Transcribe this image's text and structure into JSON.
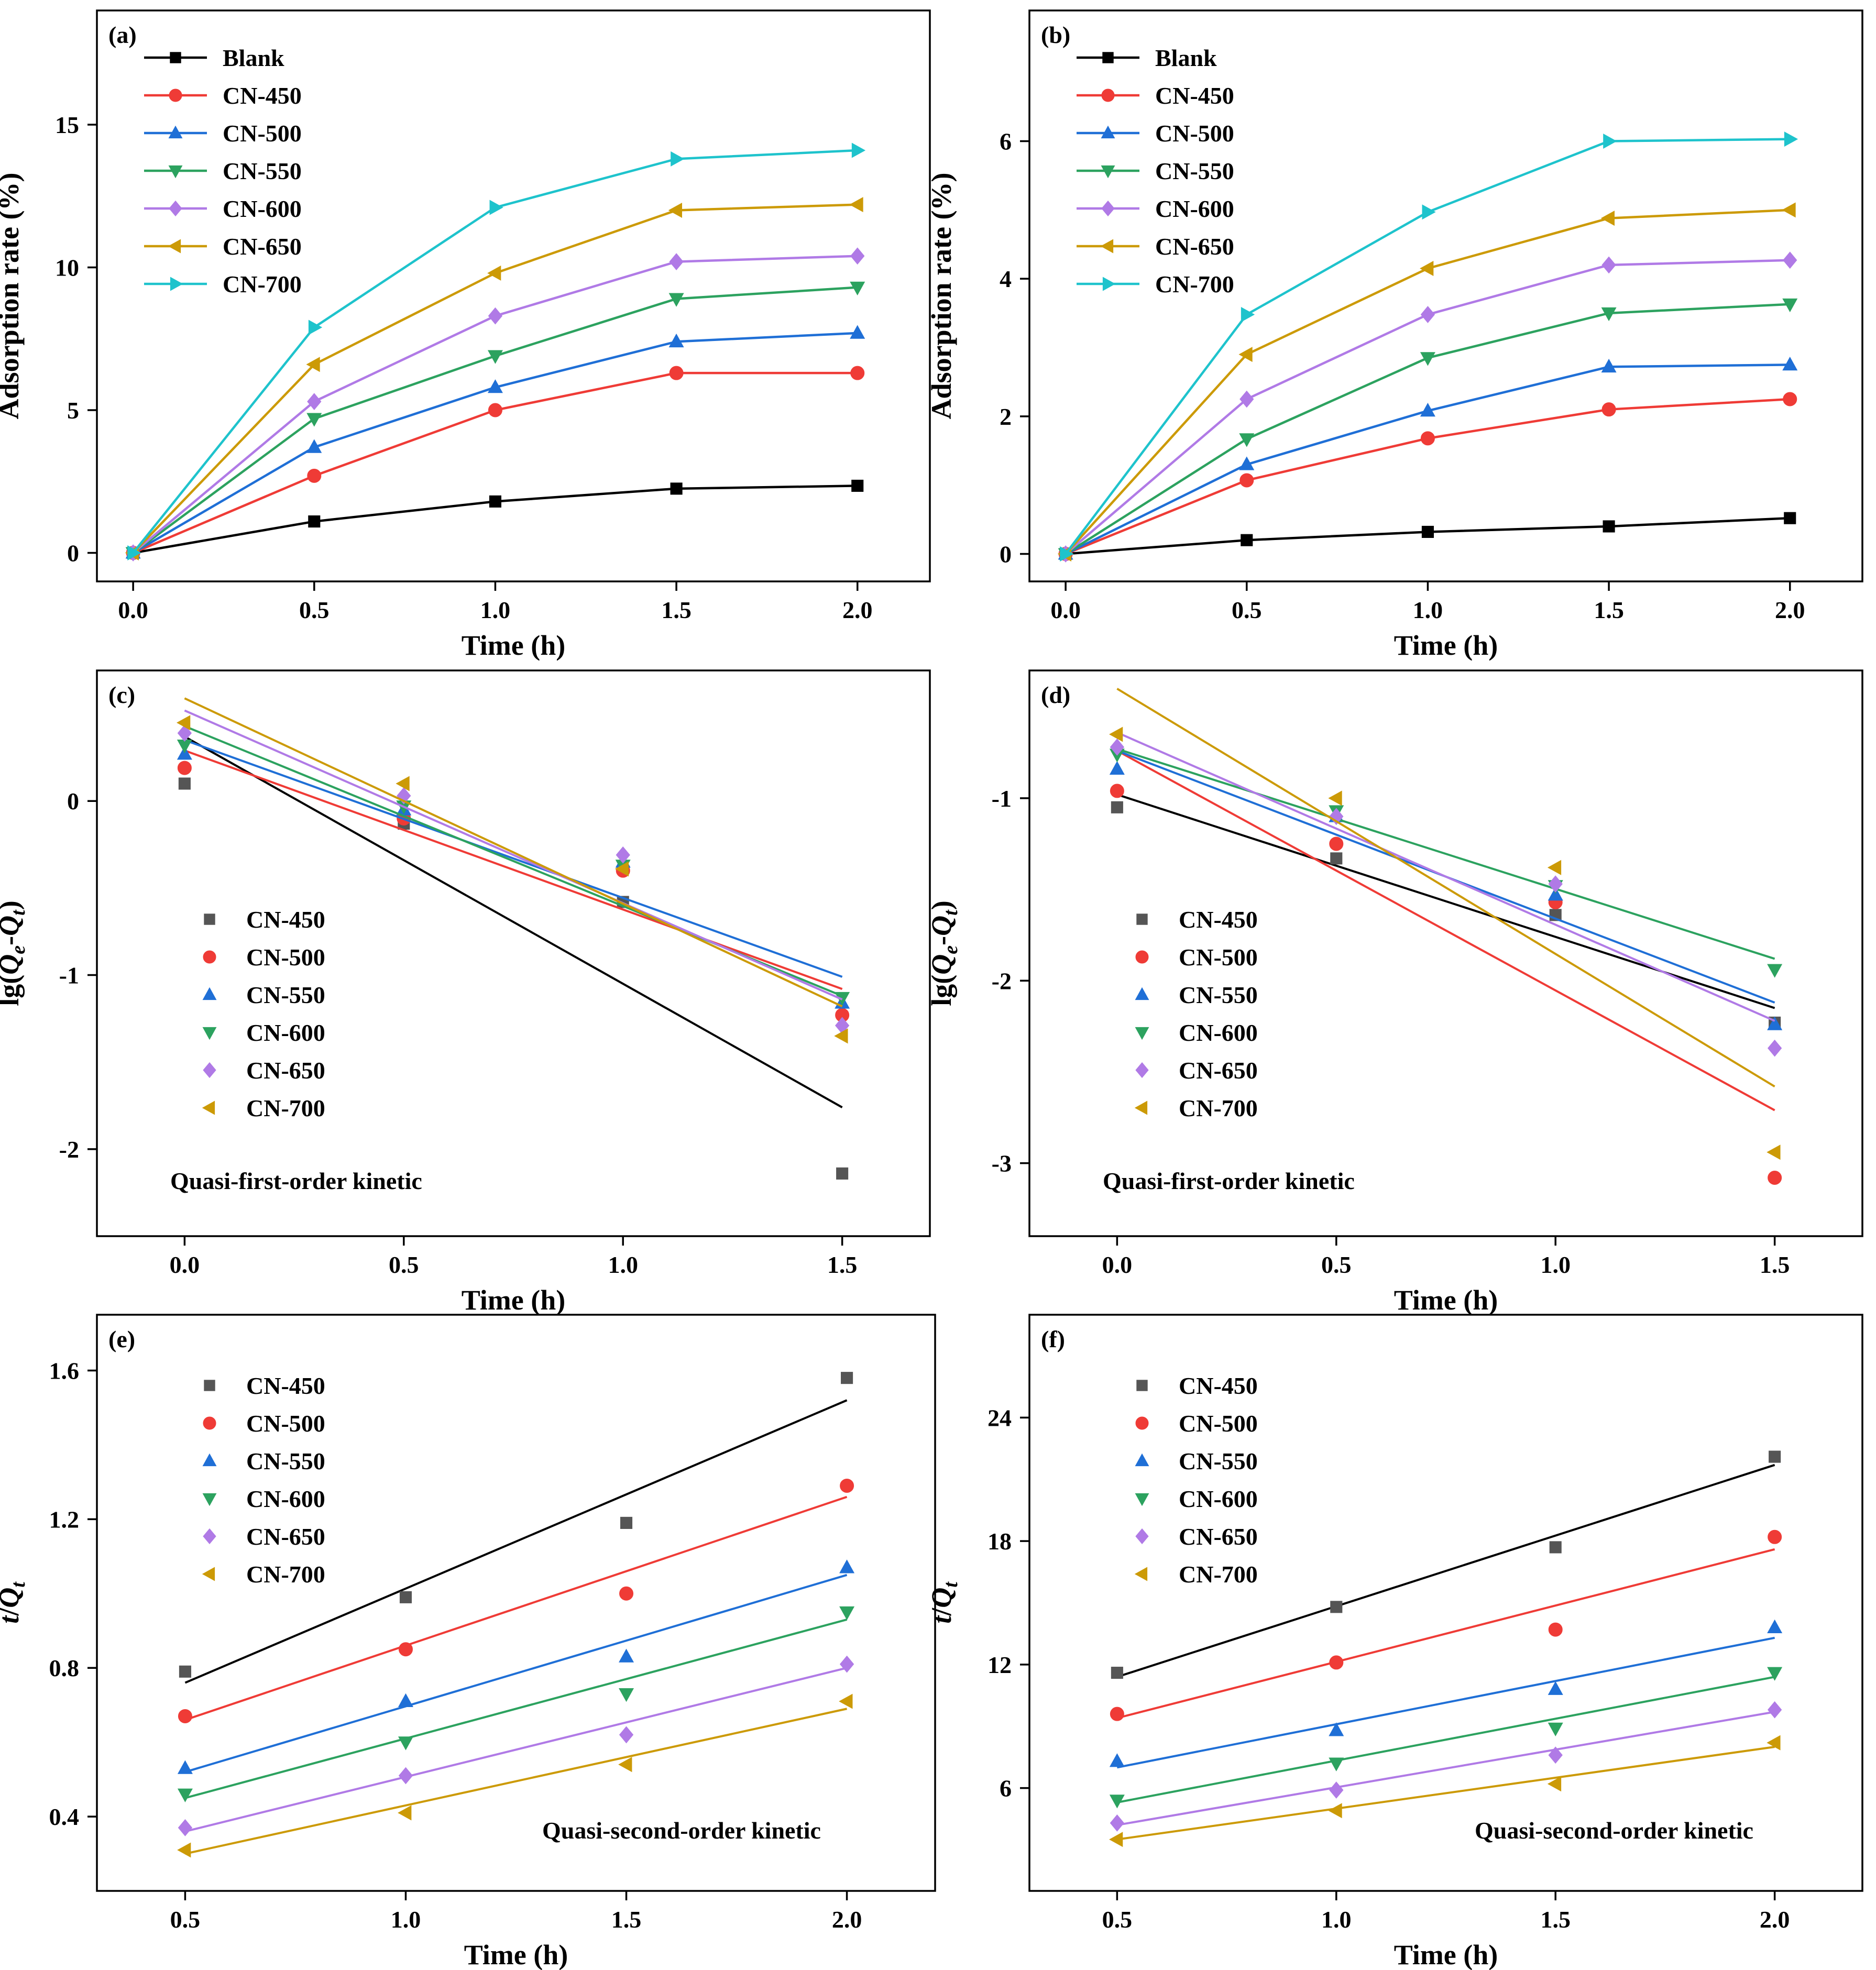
{
  "figure": {
    "background": "#ffffff",
    "series_colors": {
      "Blank": "#000000",
      "CN-450": "#ef3b36",
      "CN-500": "#1f6fd6",
      "CN-550": "#2ca25f",
      "CN-600": "#b07ae6",
      "CN-650": "#cc9a06",
      "CN-700": "#1ec3cc"
    },
    "fit_colors": [
      "#000000",
      "#ef3b36",
      "#1f6fd6",
      "#2ca25f",
      "#b07ae6",
      "#cc9a06"
    ],
    "scatter_colors": [
      "#555555",
      "#ef3b36",
      "#1f6fd6",
      "#2ca25f",
      "#b07ae6",
      "#cc9a06"
    ],
    "marker_shapes": [
      "square",
      "circle",
      "triangle-up",
      "triangle-down",
      "diamond",
      "triangle-left",
      "triangle-right"
    ]
  },
  "chart_data": [
    {
      "panel": "(a)",
      "type": "line",
      "xlabel": "Time (h)",
      "ylabel": "Adsorption rate (%)",
      "xlim": [
        -0.1,
        2.2
      ],
      "ylim": [
        -1,
        19
      ],
      "xticks": [
        0.0,
        0.5,
        1.0,
        1.5,
        2.0
      ],
      "xtick_labels": [
        "0.0",
        "0.5",
        "1.0",
        "1.5",
        "2.0"
      ],
      "yticks": [
        0,
        5,
        10,
        15
      ],
      "ytick_labels": [
        "0",
        "5",
        "10",
        "15"
      ],
      "legend_position": "top-left",
      "x": [
        0,
        0.5,
        1.0,
        1.5,
        2.0
      ],
      "series": [
        {
          "name": "Blank",
          "marker": "square",
          "values": [
            0,
            1.1,
            1.8,
            2.25,
            2.35
          ]
        },
        {
          "name": "CN-450",
          "marker": "circle",
          "values": [
            0,
            2.7,
            5.0,
            6.3,
            6.3
          ]
        },
        {
          "name": "CN-500",
          "marker": "triangle-up",
          "values": [
            0,
            3.7,
            5.8,
            7.4,
            7.7
          ]
        },
        {
          "name": "CN-550",
          "marker": "triangle-down",
          "values": [
            0,
            4.7,
            6.9,
            8.9,
            9.3
          ]
        },
        {
          "name": "CN-600",
          "marker": "diamond",
          "values": [
            0,
            5.3,
            8.3,
            10.2,
            10.4
          ]
        },
        {
          "name": "CN-650",
          "marker": "triangle-left",
          "values": [
            0,
            6.6,
            9.8,
            12.0,
            12.2
          ]
        },
        {
          "name": "CN-700",
          "marker": "triangle-right",
          "values": [
            0,
            7.9,
            12.1,
            13.8,
            14.1
          ]
        }
      ]
    },
    {
      "panel": "(b)",
      "type": "line",
      "xlabel": "Time (h)",
      "ylabel": "Adsorption rate (%)",
      "xlim": [
        -0.1,
        2.2
      ],
      "ylim": [
        -0.4,
        7.9
      ],
      "xticks": [
        0.0,
        0.5,
        1.0,
        1.5,
        2.0
      ],
      "xtick_labels": [
        "0.0",
        "0.5",
        "1.0",
        "1.5",
        "2.0"
      ],
      "yticks": [
        0,
        2,
        4,
        6
      ],
      "ytick_labels": [
        "0",
        "2",
        "4",
        "6"
      ],
      "legend_position": "top-left",
      "x": [
        0,
        0.5,
        1.0,
        1.5,
        2.0
      ],
      "series": [
        {
          "name": "Blank",
          "marker": "square",
          "values": [
            0,
            0.2,
            0.32,
            0.4,
            0.52
          ]
        },
        {
          "name": "CN-450",
          "marker": "circle",
          "values": [
            0,
            1.07,
            1.68,
            2.1,
            2.25
          ]
        },
        {
          "name": "CN-500",
          "marker": "triangle-up",
          "values": [
            0,
            1.3,
            2.08,
            2.72,
            2.75
          ]
        },
        {
          "name": "CN-550",
          "marker": "triangle-down",
          "values": [
            0,
            1.67,
            2.85,
            3.5,
            3.63
          ]
        },
        {
          "name": "CN-600",
          "marker": "diamond",
          "values": [
            0,
            2.25,
            3.48,
            4.2,
            4.27
          ]
        },
        {
          "name": "CN-650",
          "marker": "triangle-left",
          "values": [
            0,
            2.9,
            4.15,
            4.88,
            5.0
          ]
        },
        {
          "name": "CN-700",
          "marker": "triangle-right",
          "values": [
            0,
            3.48,
            4.97,
            6.0,
            6.03
          ]
        }
      ]
    },
    {
      "panel": "(c)",
      "type": "scatter",
      "xlabel": "Time (h)",
      "ylabel": "lg(Qe-Qt)",
      "xlim": [
        -0.2,
        1.7
      ],
      "ylim": [
        -2.5,
        0.75
      ],
      "xticks": [
        0.0,
        0.5,
        1.0,
        1.5
      ],
      "xtick_labels": [
        "0.0",
        "0.5",
        "1.0",
        "1.5"
      ],
      "yticks": [
        -2,
        -1,
        0
      ],
      "ytick_labels": [
        "-2",
        "-1",
        "0"
      ],
      "annotation": "Quasi-first-order kinetic",
      "legend_position": "center-left",
      "x": [
        0,
        0.5,
        1.0,
        1.5
      ],
      "series": [
        {
          "name": "CN-450",
          "marker": "square",
          "values": [
            0.1,
            -0.13,
            -0.58,
            -2.14
          ],
          "fit": [
            0.37,
            -1.76
          ]
        },
        {
          "name": "CN-500",
          "marker": "circle",
          "values": [
            0.19,
            -0.1,
            -0.4,
            -1.23
          ],
          "fit": [
            0.29,
            -1.08
          ]
        },
        {
          "name": "CN-550",
          "marker": "triangle-up",
          "values": [
            0.27,
            -0.05,
            -0.35,
            -1.16
          ],
          "fit": [
            0.35,
            -1.01
          ]
        },
        {
          "name": "CN-600",
          "marker": "triangle-down",
          "values": [
            0.32,
            -0.03,
            -0.37,
            -1.13
          ],
          "fit": [
            0.43,
            -1.12
          ]
        },
        {
          "name": "CN-650",
          "marker": "diamond",
          "values": [
            0.39,
            0.03,
            -0.31,
            -1.29
          ],
          "fit": [
            0.52,
            -1.14
          ]
        },
        {
          "name": "CN-700",
          "marker": "triangle-left",
          "values": [
            0.45,
            0.1,
            -0.39,
            -1.35
          ],
          "fit": [
            0.59,
            -1.18
          ]
        }
      ]
    },
    {
      "panel": "(d)",
      "type": "scatter",
      "xlabel": "Time (h)",
      "ylabel": "lg(Qe-Qt)",
      "xlim": [
        -0.2,
        1.7
      ],
      "ylim": [
        -3.4,
        -0.3
      ],
      "xticks": [
        0.0,
        0.5,
        1.0,
        1.5
      ],
      "xtick_labels": [
        "0.0",
        "0.5",
        "1.0",
        "1.5"
      ],
      "yticks": [
        -3,
        -2,
        -1
      ],
      "ytick_labels": [
        "-3",
        "-2",
        "-1"
      ],
      "annotation": "Quasi-first-order kinetic",
      "legend_position": "center-left",
      "x": [
        0,
        0.5,
        1.0,
        1.5
      ],
      "series": [
        {
          "name": "CN-450",
          "marker": "square",
          "values": [
            -1.05,
            -1.33,
            -1.64,
            -2.23
          ],
          "fit": [
            -0.98,
            -2.15
          ]
        },
        {
          "name": "CN-500",
          "marker": "circle",
          "values": [
            -0.96,
            -1.25,
            -1.57,
            -3.08
          ],
          "fit": [
            -0.74,
            -2.71
          ]
        },
        {
          "name": "CN-550",
          "marker": "triangle-up",
          "values": [
            -0.84,
            -1.1,
            -1.53,
            -2.24
          ],
          "fit": [
            -0.74,
            -2.12
          ]
        },
        {
          "name": "CN-600",
          "marker": "triangle-down",
          "values": [
            -0.76,
            -1.07,
            -1.48,
            -1.94
          ],
          "fit": [
            -0.73,
            -1.88
          ]
        },
        {
          "name": "CN-650",
          "marker": "diamond",
          "values": [
            -0.72,
            -1.1,
            -1.47,
            -2.37
          ],
          "fit": [
            -0.64,
            -2.22
          ]
        },
        {
          "name": "CN-700",
          "marker": "triangle-left",
          "values": [
            -0.65,
            -1.0,
            -1.38,
            -2.94
          ],
          "fit": [
            -0.4,
            -2.58
          ]
        }
      ]
    },
    {
      "panel": "(e)",
      "type": "scatter",
      "xlabel": "Time (h)",
      "ylabel": "t/Qt",
      "xlim": [
        0.3,
        2.2
      ],
      "ylim": [
        0.2,
        1.75
      ],
      "xticks": [
        0.5,
        1.0,
        1.5,
        2.0
      ],
      "xtick_labels": [
        "0.5",
        "1.0",
        "1.5",
        "2.0"
      ],
      "yticks": [
        0.4,
        0.8,
        1.2,
        1.6
      ],
      "ytick_labels": [
        "0.4",
        "0.8",
        "1.2",
        "1.6"
      ],
      "annotation": "Quasi-second-order kinetic",
      "legend_position": "top-left",
      "x": [
        0.5,
        1.0,
        1.5,
        2.0
      ],
      "series": [
        {
          "name": "CN-450",
          "marker": "square",
          "values": [
            0.79,
            0.99,
            1.19,
            1.58
          ],
          "fit": [
            0.76,
            1.52
          ]
        },
        {
          "name": "CN-500",
          "marker": "circle",
          "values": [
            0.67,
            0.85,
            1.0,
            1.29
          ],
          "fit": [
            0.66,
            1.26
          ]
        },
        {
          "name": "CN-550",
          "marker": "triangle-up",
          "values": [
            0.53,
            0.71,
            0.83,
            1.07
          ],
          "fit": [
            0.52,
            1.05
          ]
        },
        {
          "name": "CN-600",
          "marker": "triangle-down",
          "values": [
            0.46,
            0.6,
            0.73,
            0.95
          ],
          "fit": [
            0.45,
            0.93
          ]
        },
        {
          "name": "CN-650",
          "marker": "diamond",
          "values": [
            0.37,
            0.51,
            0.62,
            0.81
          ],
          "fit": [
            0.36,
            0.8
          ]
        },
        {
          "name": "CN-700",
          "marker": "triangle-left",
          "values": [
            0.31,
            0.41,
            0.54,
            0.71
          ],
          "fit": [
            0.3,
            0.69
          ]
        }
      ]
    },
    {
      "panel": "(f)",
      "type": "scatter",
      "xlabel": "Time (h)",
      "ylabel": "t/Qt",
      "xlim": [
        0.3,
        2.2
      ],
      "ylim": [
        1,
        29
      ],
      "xticks": [
        0.5,
        1.0,
        1.5,
        2.0
      ],
      "xtick_labels": [
        "0.5",
        "1.0",
        "1.5",
        "2.0"
      ],
      "yticks": [
        6,
        12,
        18,
        24
      ],
      "ytick_labels": [
        "6",
        "12",
        "18",
        "24"
      ],
      "annotation": "Quasi-second-order kinetic",
      "legend_position": "top-left",
      "x": [
        0.5,
        1.0,
        1.5,
        2.0
      ],
      "series": [
        {
          "name": "CN-450",
          "marker": "square",
          "values": [
            11.6,
            14.8,
            17.7,
            22.1
          ],
          "fit": [
            11.4,
            21.7
          ]
        },
        {
          "name": "CN-500",
          "marker": "circle",
          "values": [
            9.6,
            12.1,
            13.7,
            18.2
          ],
          "fit": [
            9.4,
            17.6
          ]
        },
        {
          "name": "CN-550",
          "marker": "triangle-up",
          "values": [
            7.3,
            8.8,
            10.8,
            13.8
          ],
          "fit": [
            7.0,
            13.3
          ]
        },
        {
          "name": "CN-600",
          "marker": "triangle-down",
          "values": [
            5.4,
            7.2,
            8.9,
            11.6
          ],
          "fit": [
            5.3,
            11.4
          ]
        },
        {
          "name": "CN-650",
          "marker": "diamond",
          "values": [
            4.3,
            5.9,
            7.6,
            9.8
          ],
          "fit": [
            4.2,
            9.7
          ]
        },
        {
          "name": "CN-700",
          "marker": "triangle-left",
          "values": [
            3.5,
            4.9,
            6.2,
            8.2
          ],
          "fit": [
            3.5,
            8.0
          ]
        }
      ]
    }
  ]
}
